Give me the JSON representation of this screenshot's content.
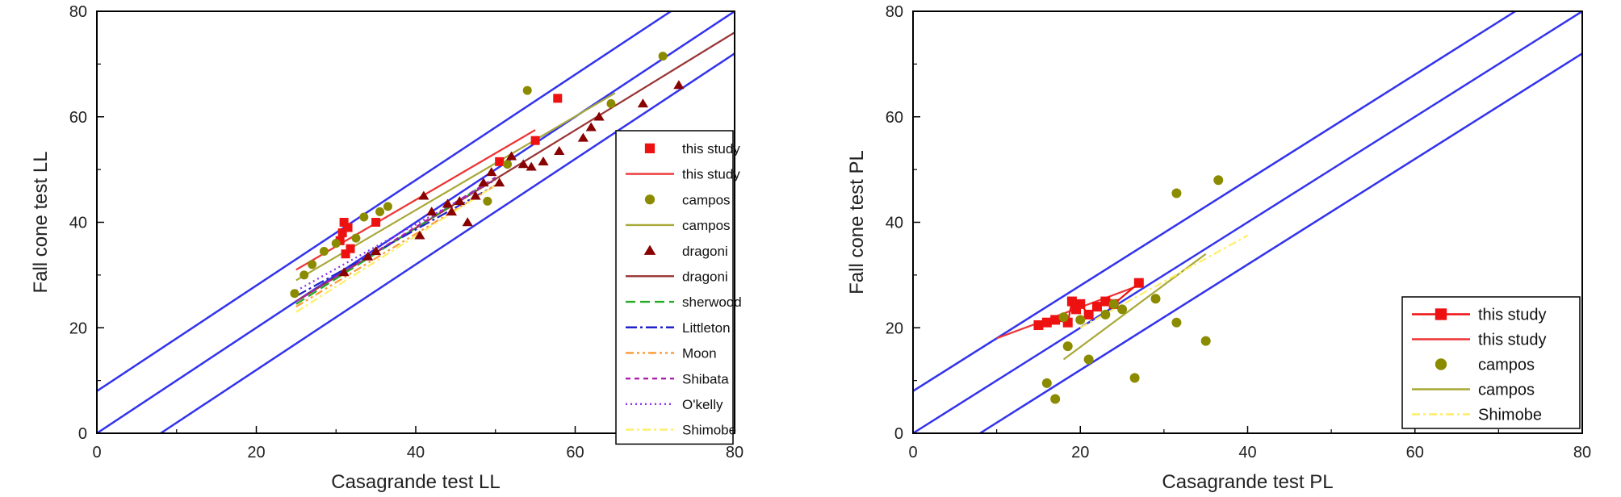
{
  "chart_data": [
    {
      "type": "scatter",
      "xlabel": "Casagrande test LL",
      "ylabel": "Fall cone test LL",
      "xlim": [
        0,
        80
      ],
      "ylim": [
        0,
        80
      ],
      "xticks": [
        "0",
        "20",
        "40",
        "60",
        "80"
      ],
      "yticks": [
        "0",
        "20",
        "40",
        "60",
        "80"
      ],
      "reference_lines": [
        {
          "x": [
            0,
            72
          ],
          "y": [
            8,
            80
          ],
          "color": "#3333ee"
        },
        {
          "x": [
            0,
            80
          ],
          "y": [
            0,
            80
          ],
          "color": "#3333ee"
        },
        {
          "x": [
            8,
            80
          ],
          "y": [
            0,
            72
          ],
          "color": "#3333ee"
        }
      ],
      "legend_position": "right",
      "series": [
        {
          "name": "this study",
          "kind": "points",
          "marker": "square",
          "color": "#ee1111",
          "x": [
            30.5,
            30.8,
            31,
            31.2,
            31.5,
            31.8,
            35,
            50.5,
            55,
            57.8
          ],
          "y": [
            36.5,
            38,
            40,
            34,
            39,
            35,
            40,
            51.5,
            55.5,
            63.5
          ]
        },
        {
          "name": "this study",
          "kind": "line",
          "color": "#ee3333",
          "dash": "",
          "x": [
            25,
            55
          ],
          "y": [
            31,
            57.5
          ]
        },
        {
          "name": "campos",
          "kind": "points",
          "marker": "circle",
          "color": "#8b8b00",
          "x": [
            24.8,
            26,
            27,
            28.5,
            30,
            32.5,
            33.5,
            35.5,
            36.5,
            49,
            51.5,
            54,
            64.5,
            71
          ],
          "y": [
            26.5,
            30,
            32,
            34.5,
            36,
            37,
            41,
            42,
            43,
            44,
            51,
            65,
            62.5,
            71.5
          ]
        },
        {
          "name": "campos",
          "kind": "line",
          "color": "#a8a838",
          "dash": "",
          "x": [
            25,
            65
          ],
          "y": [
            29,
            64.5
          ]
        },
        {
          "name": "dragoni",
          "kind": "points",
          "marker": "triangle",
          "color": "#880000",
          "x": [
            31,
            34,
            35,
            40.5,
            41,
            42,
            44,
            44.5,
            45.5,
            46.5,
            47.5,
            48.5,
            49.5,
            50.5,
            52,
            53.5,
            54.5,
            56,
            58,
            61,
            62,
            63,
            68.5,
            73
          ],
          "y": [
            30.5,
            33.5,
            34.5,
            37.5,
            45,
            42,
            43.5,
            42,
            44,
            40,
            45,
            47.5,
            49.5,
            47.5,
            52.5,
            51,
            50.5,
            51.5,
            53.5,
            56,
            58,
            60,
            62.5,
            66
          ]
        },
        {
          "name": "dragoni",
          "kind": "line",
          "color": "#993333",
          "dash": "",
          "x": [
            25,
            80
          ],
          "y": [
            25,
            76
          ]
        },
        {
          "name": "sherwood",
          "kind": "line",
          "color": "#22aa22",
          "dash": "12,6",
          "x": [
            25,
            50
          ],
          "y": [
            24.5,
            48.5
          ]
        },
        {
          "name": "Littleton",
          "kind": "line",
          "color": "#2222cc",
          "dash": "14,4,3,4",
          "x": [
            25,
            50
          ],
          "y": [
            26,
            47
          ]
        },
        {
          "name": "Moon",
          "kind": "line",
          "color": "#ff9933",
          "dash": "10,4,3,4,3,4",
          "x": [
            25,
            50
          ],
          "y": [
            24,
            47
          ]
        },
        {
          "name": "Shibata",
          "kind": "line",
          "color": "#aa22aa",
          "dash": "6,5",
          "x": [
            25,
            50
          ],
          "y": [
            25,
            48.5
          ]
        },
        {
          "name": "O'kelly",
          "kind": "line",
          "color": "#8833ee",
          "dash": "2,4",
          "x": [
            25,
            50
          ],
          "y": [
            27,
            48
          ]
        },
        {
          "name": "Shimobe",
          "kind": "line",
          "color": "#ffee66",
          "dash": "10,4,3,4",
          "x": [
            25,
            50
          ],
          "y": [
            23,
            47
          ]
        }
      ]
    },
    {
      "type": "scatter",
      "xlabel": "Casagrande test PL",
      "ylabel": "Fall cone test PL",
      "xlim": [
        0,
        80
      ],
      "ylim": [
        0,
        80
      ],
      "xticks": [
        "0",
        "20",
        "40",
        "60",
        "80"
      ],
      "yticks": [
        "0",
        "20",
        "40",
        "60",
        "80"
      ],
      "reference_lines": [
        {
          "x": [
            0,
            72
          ],
          "y": [
            8,
            80
          ],
          "color": "#3333ee"
        },
        {
          "x": [
            0,
            80
          ],
          "y": [
            0,
            80
          ],
          "color": "#3333ee"
        },
        {
          "x": [
            8,
            80
          ],
          "y": [
            0,
            72
          ],
          "color": "#3333ee"
        }
      ],
      "legend_position": "bottom-right",
      "series": [
        {
          "name": "this study",
          "kind": "points",
          "marker": "square",
          "color": "#ee1111",
          "connect": true,
          "x": [
            15,
            16,
            17,
            18.5,
            19,
            19.5,
            20,
            21,
            22,
            23,
            24,
            27
          ],
          "y": [
            20.5,
            21,
            21.5,
            21,
            25,
            23.5,
            24.5,
            22.5,
            24,
            25,
            24.5,
            28.5
          ]
        },
        {
          "name": "this study",
          "kind": "line",
          "color": "#ee3333",
          "dash": "",
          "x": [
            10,
            27
          ],
          "y": [
            18,
            28
          ]
        },
        {
          "name": "campos",
          "kind": "points",
          "marker": "circle",
          "color": "#8b8b00",
          "x": [
            16,
            17,
            18,
            18.5,
            20,
            21,
            23,
            24,
            25,
            26.5,
            29,
            31.5,
            31.5,
            35,
            36.5
          ],
          "y": [
            9.5,
            6.5,
            22,
            16.5,
            21.5,
            14,
            22.5,
            24.5,
            23.5,
            10.5,
            25.5,
            21,
            45.5,
            17.5,
            48
          ]
        },
        {
          "name": "campos",
          "kind": "line",
          "color": "#a8a838",
          "dash": "",
          "x": [
            18,
            35
          ],
          "y": [
            14,
            34
          ]
        },
        {
          "name": "Shimobe",
          "kind": "line",
          "color": "#ffee66",
          "dash": "10,4,3,4",
          "x": [
            20,
            40
          ],
          "y": [
            20,
            37.5
          ]
        }
      ]
    }
  ]
}
